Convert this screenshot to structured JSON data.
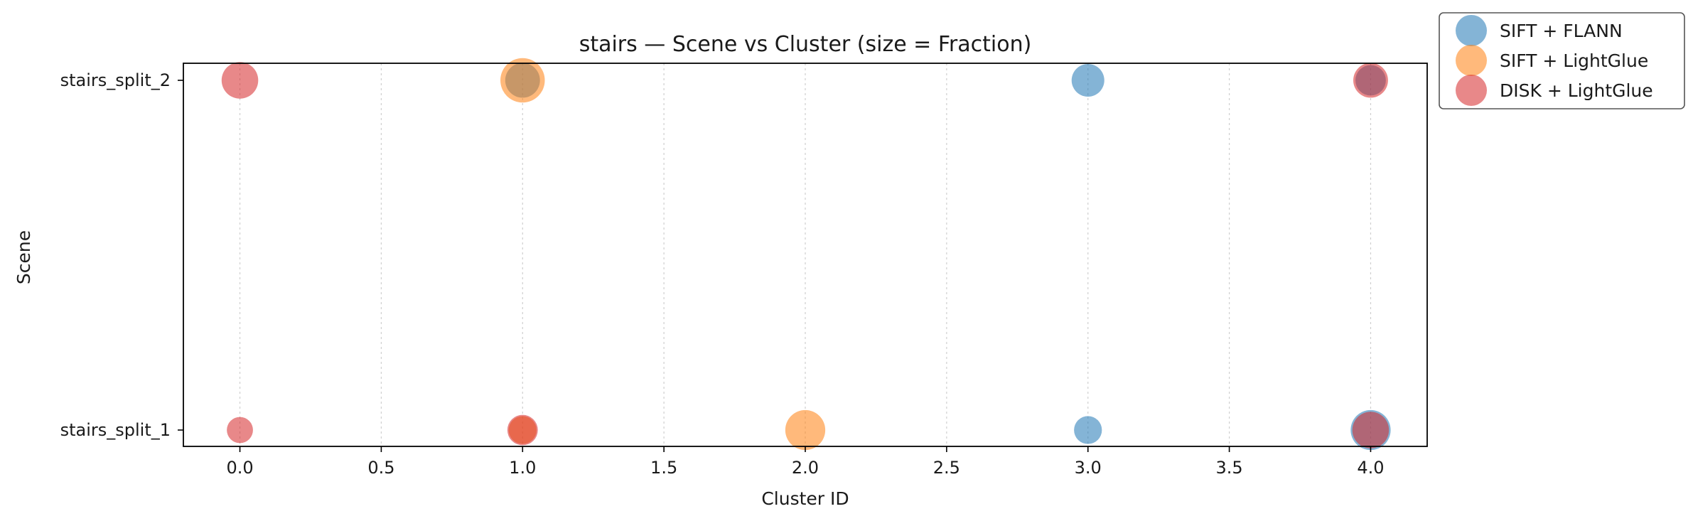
{
  "chart_data": {
    "type": "scatter",
    "title": "stairs — Scene vs Cluster (size = Fraction)",
    "xlabel": "Cluster ID",
    "ylabel": "Scene",
    "xlim": [
      -0.2,
      4.2
    ],
    "xticks": [
      "0.0",
      "0.5",
      "1.0",
      "1.5",
      "2.0",
      "2.5",
      "3.0",
      "3.5",
      "4.0"
    ],
    "xtick_values": [
      0,
      0.5,
      1,
      1.5,
      2,
      2.5,
      3,
      3.5,
      4
    ],
    "categories": [
      "stairs_split_1",
      "stairs_split_2"
    ],
    "grid": "x-dotted",
    "legend_position": "outside-top-right",
    "series": [
      {
        "name": "SIFT + FLANN",
        "color": "#1f77b4",
        "points": [
          {
            "x": 1,
            "y": "stairs_split_2",
            "fraction": 0.3
          },
          {
            "x": 3,
            "y": "stairs_split_2",
            "fraction": 0.25
          },
          {
            "x": 4,
            "y": "stairs_split_2",
            "fraction": 0.2
          },
          {
            "x": 3,
            "y": "stairs_split_1",
            "fraction": 0.15
          },
          {
            "x": 4,
            "y": "stairs_split_1",
            "fraction": 0.45
          }
        ]
      },
      {
        "name": "SIFT + LightGlue",
        "color": "#ff7f0e",
        "points": [
          {
            "x": 1,
            "y": "stairs_split_2",
            "fraction": 0.6
          },
          {
            "x": 1,
            "y": "stairs_split_1",
            "fraction": 0.15
          },
          {
            "x": 2,
            "y": "stairs_split_1",
            "fraction": 0.45
          }
        ]
      },
      {
        "name": "DISK + LightGlue",
        "color": "#d62728",
        "points": [
          {
            "x": 0,
            "y": "stairs_split_2",
            "fraction": 0.35
          },
          {
            "x": 4,
            "y": "stairs_split_2",
            "fraction": 0.3
          },
          {
            "x": 0,
            "y": "stairs_split_1",
            "fraction": 0.12
          },
          {
            "x": 1,
            "y": "stairs_split_1",
            "fraction": 0.2
          },
          {
            "x": 4,
            "y": "stairs_split_1",
            "fraction": 0.35
          }
        ]
      }
    ]
  }
}
